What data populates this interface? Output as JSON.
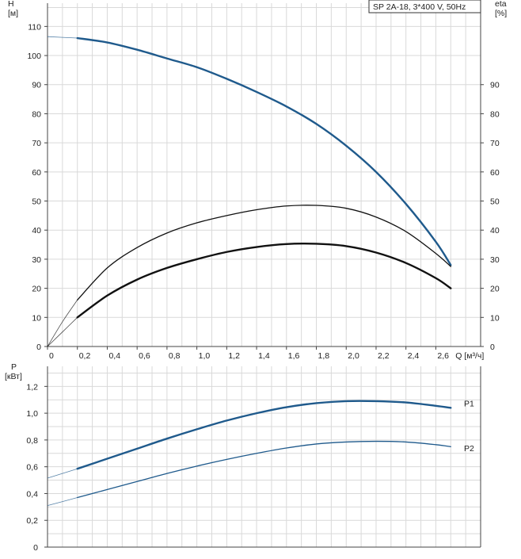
{
  "chart_data": [
    {
      "type": "line",
      "legend": "SP 2A-18, 3*400 V, 50Hz",
      "legend_position": "top-right",
      "grid": true,
      "x_axis": {
        "label": "Q [м³/ч]",
        "range": [
          0,
          2.9
        ],
        "ticks": [
          "0",
          "0,2",
          "0,4",
          "0,6",
          "0,8",
          "1,0",
          "1,2",
          "1,4",
          "1,6",
          "1,8",
          "2,0",
          "2,2",
          "2,4",
          "2,6"
        ]
      },
      "y_axis_left": {
        "label_line1": "H",
        "label_line2": "[м]",
        "range": [
          0,
          118
        ],
        "ticks": [
          "0",
          "10",
          "20",
          "30",
          "40",
          "50",
          "60",
          "70",
          "80",
          "90",
          "100",
          "110"
        ]
      },
      "y_axis_right": {
        "label_line1": "eta",
        "label_line2": "[%]",
        "range": [
          0,
          118
        ],
        "ticks": [
          "0",
          "10",
          "20",
          "30",
          "40",
          "50",
          "60",
          "70",
          "80",
          "90"
        ]
      },
      "series": [
        {
          "color": "#1f5a8c",
          "width": 2.4,
          "x": [
            0.2,
            0.4,
            0.6,
            0.8,
            1.0,
            1.2,
            1.4,
            1.6,
            1.8,
            2.0,
            2.2,
            2.4,
            2.6,
            2.7
          ],
          "y": [
            106,
            104.5,
            102,
            99,
            96,
            92,
            87.5,
            82.5,
            76.5,
            69,
            60,
            49,
            36,
            28
          ],
          "extension": {
            "x": [
              0,
              0.2
            ],
            "y": [
              106.5,
              106
            ]
          }
        },
        {
          "color": "#111111",
          "width": 1.3,
          "x": [
            0.2,
            0.4,
            0.6,
            0.8,
            1.0,
            1.2,
            1.4,
            1.6,
            1.8,
            2.0,
            2.2,
            2.4,
            2.6,
            2.7
          ],
          "y": [
            16,
            27,
            34,
            39,
            42.5,
            45,
            47,
            48.3,
            48.5,
            47.5,
            44.5,
            39.5,
            32,
            27.5
          ],
          "extension": {
            "x": [
              0,
              0.1,
              0.2
            ],
            "y": [
              0,
              8.5,
              16
            ]
          }
        },
        {
          "color": "#111111",
          "width": 2.4,
          "x": [
            0.2,
            0.4,
            0.6,
            0.8,
            1.0,
            1.2,
            1.4,
            1.6,
            1.8,
            2.0,
            2.2,
            2.4,
            2.6,
            2.7
          ],
          "y": [
            10,
            17.5,
            23,
            27,
            30,
            32.5,
            34.2,
            35.2,
            35.3,
            34.5,
            32.3,
            28.7,
            23.5,
            20
          ],
          "extension": {
            "x": [
              0,
              0.1,
              0.2
            ],
            "y": [
              0,
              5,
              10
            ]
          }
        }
      ]
    },
    {
      "type": "line",
      "grid": true,
      "x_axis": {
        "range": [
          0,
          2.9
        ]
      },
      "y_axis_left": {
        "label_line1": "P",
        "label_line2": "[кВт]",
        "range": [
          0,
          1.35
        ],
        "ticks": [
          "0",
          "0,2",
          "0,4",
          "0,6",
          "0,8",
          "1,0",
          "1,2"
        ]
      },
      "series": [
        {
          "name": "P1",
          "color": "#1f5a8c",
          "width": 2.4,
          "x": [
            0.2,
            0.4,
            0.6,
            0.8,
            1.0,
            1.2,
            1.4,
            1.6,
            1.8,
            2.0,
            2.2,
            2.4,
            2.6,
            2.7
          ],
          "y": [
            0.585,
            0.66,
            0.735,
            0.81,
            0.88,
            0.945,
            1.0,
            1.045,
            1.075,
            1.09,
            1.09,
            1.08,
            1.055,
            1.04
          ],
          "extension": {
            "x": [
              0,
              0.2
            ],
            "y": [
              0.515,
              0.585
            ]
          }
        },
        {
          "name": "P2",
          "color": "#1f5a8c",
          "width": 1.3,
          "x": [
            0.2,
            0.4,
            0.6,
            0.8,
            1.0,
            1.2,
            1.4,
            1.6,
            1.8,
            2.0,
            2.2,
            2.4,
            2.6,
            2.7
          ],
          "y": [
            0.37,
            0.43,
            0.49,
            0.55,
            0.605,
            0.655,
            0.7,
            0.74,
            0.77,
            0.785,
            0.79,
            0.785,
            0.765,
            0.75
          ],
          "extension": {
            "x": [
              0,
              0.2
            ],
            "y": [
              0.31,
              0.37
            ]
          }
        }
      ]
    }
  ]
}
